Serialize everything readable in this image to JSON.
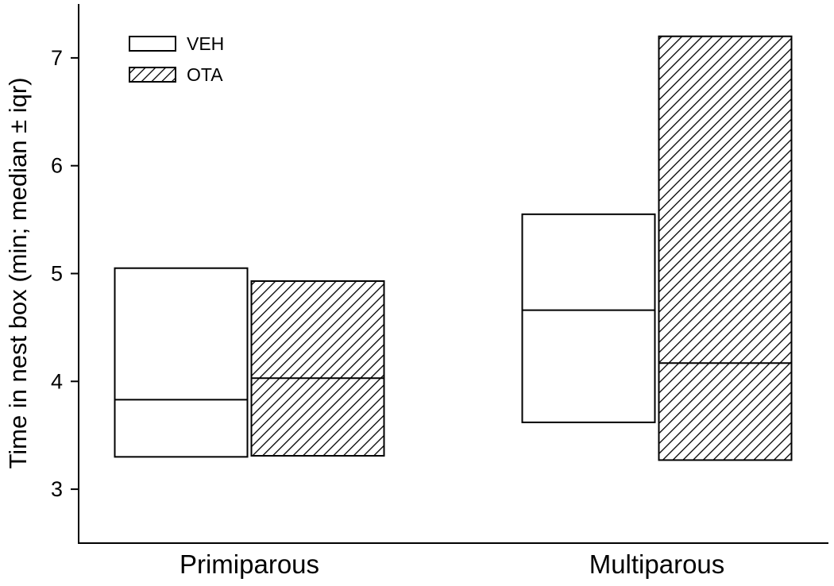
{
  "chart_data": {
    "type": "box",
    "ylabel": "Time in nest box (min; median ± iqr)",
    "xlabel": "",
    "ylim": [
      2.5,
      7.5
    ],
    "yticks": [
      3,
      4,
      5,
      6,
      7
    ],
    "categories": [
      "Primiparous",
      "Multiparous"
    ],
    "grid": false,
    "legend_position": "top-left",
    "series": [
      {
        "name": "VEH",
        "fill": "open",
        "values": [
          {
            "q1": 3.3,
            "median": 3.83,
            "q3": 5.05
          },
          {
            "q1": 3.62,
            "median": 4.66,
            "q3": 5.55
          }
        ]
      },
      {
        "name": "OTA",
        "fill": "hatched",
        "values": [
          {
            "q1": 3.31,
            "median": 4.03,
            "q3": 4.93
          },
          {
            "q1": 3.27,
            "median": 4.17,
            "q3": 7.2
          }
        ]
      }
    ]
  }
}
